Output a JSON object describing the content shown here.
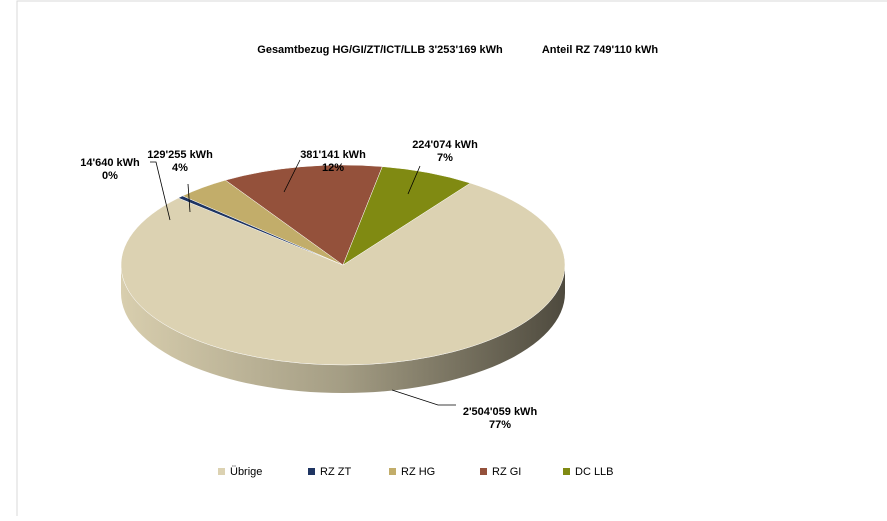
{
  "chart_data": {
    "type": "pie",
    "title": "Gesamtbezug HG/GI/ZT/ICT/LLB 3'253'169 kWh",
    "subtitle": "Anteil RZ 749'110 kWh",
    "categories": [
      "Übrige",
      "RZ ZT",
      "RZ HG",
      "RZ GI",
      "DC LLB"
    ],
    "values": [
      2504059,
      14640,
      129255,
      381141,
      224074
    ],
    "value_labels": [
      "2'504'059  kWh",
      "14'640  kWh",
      "129'255  kWh",
      "381'141  kWh",
      "224'074  kWh"
    ],
    "percent_labels": [
      "77%",
      "0%",
      "4%",
      "12%",
      "7%"
    ],
    "colors": [
      "#dcd2b2",
      "#1f3562",
      "#c2ad6a",
      "#94513b",
      "#808a12"
    ],
    "legend": "bottom"
  }
}
